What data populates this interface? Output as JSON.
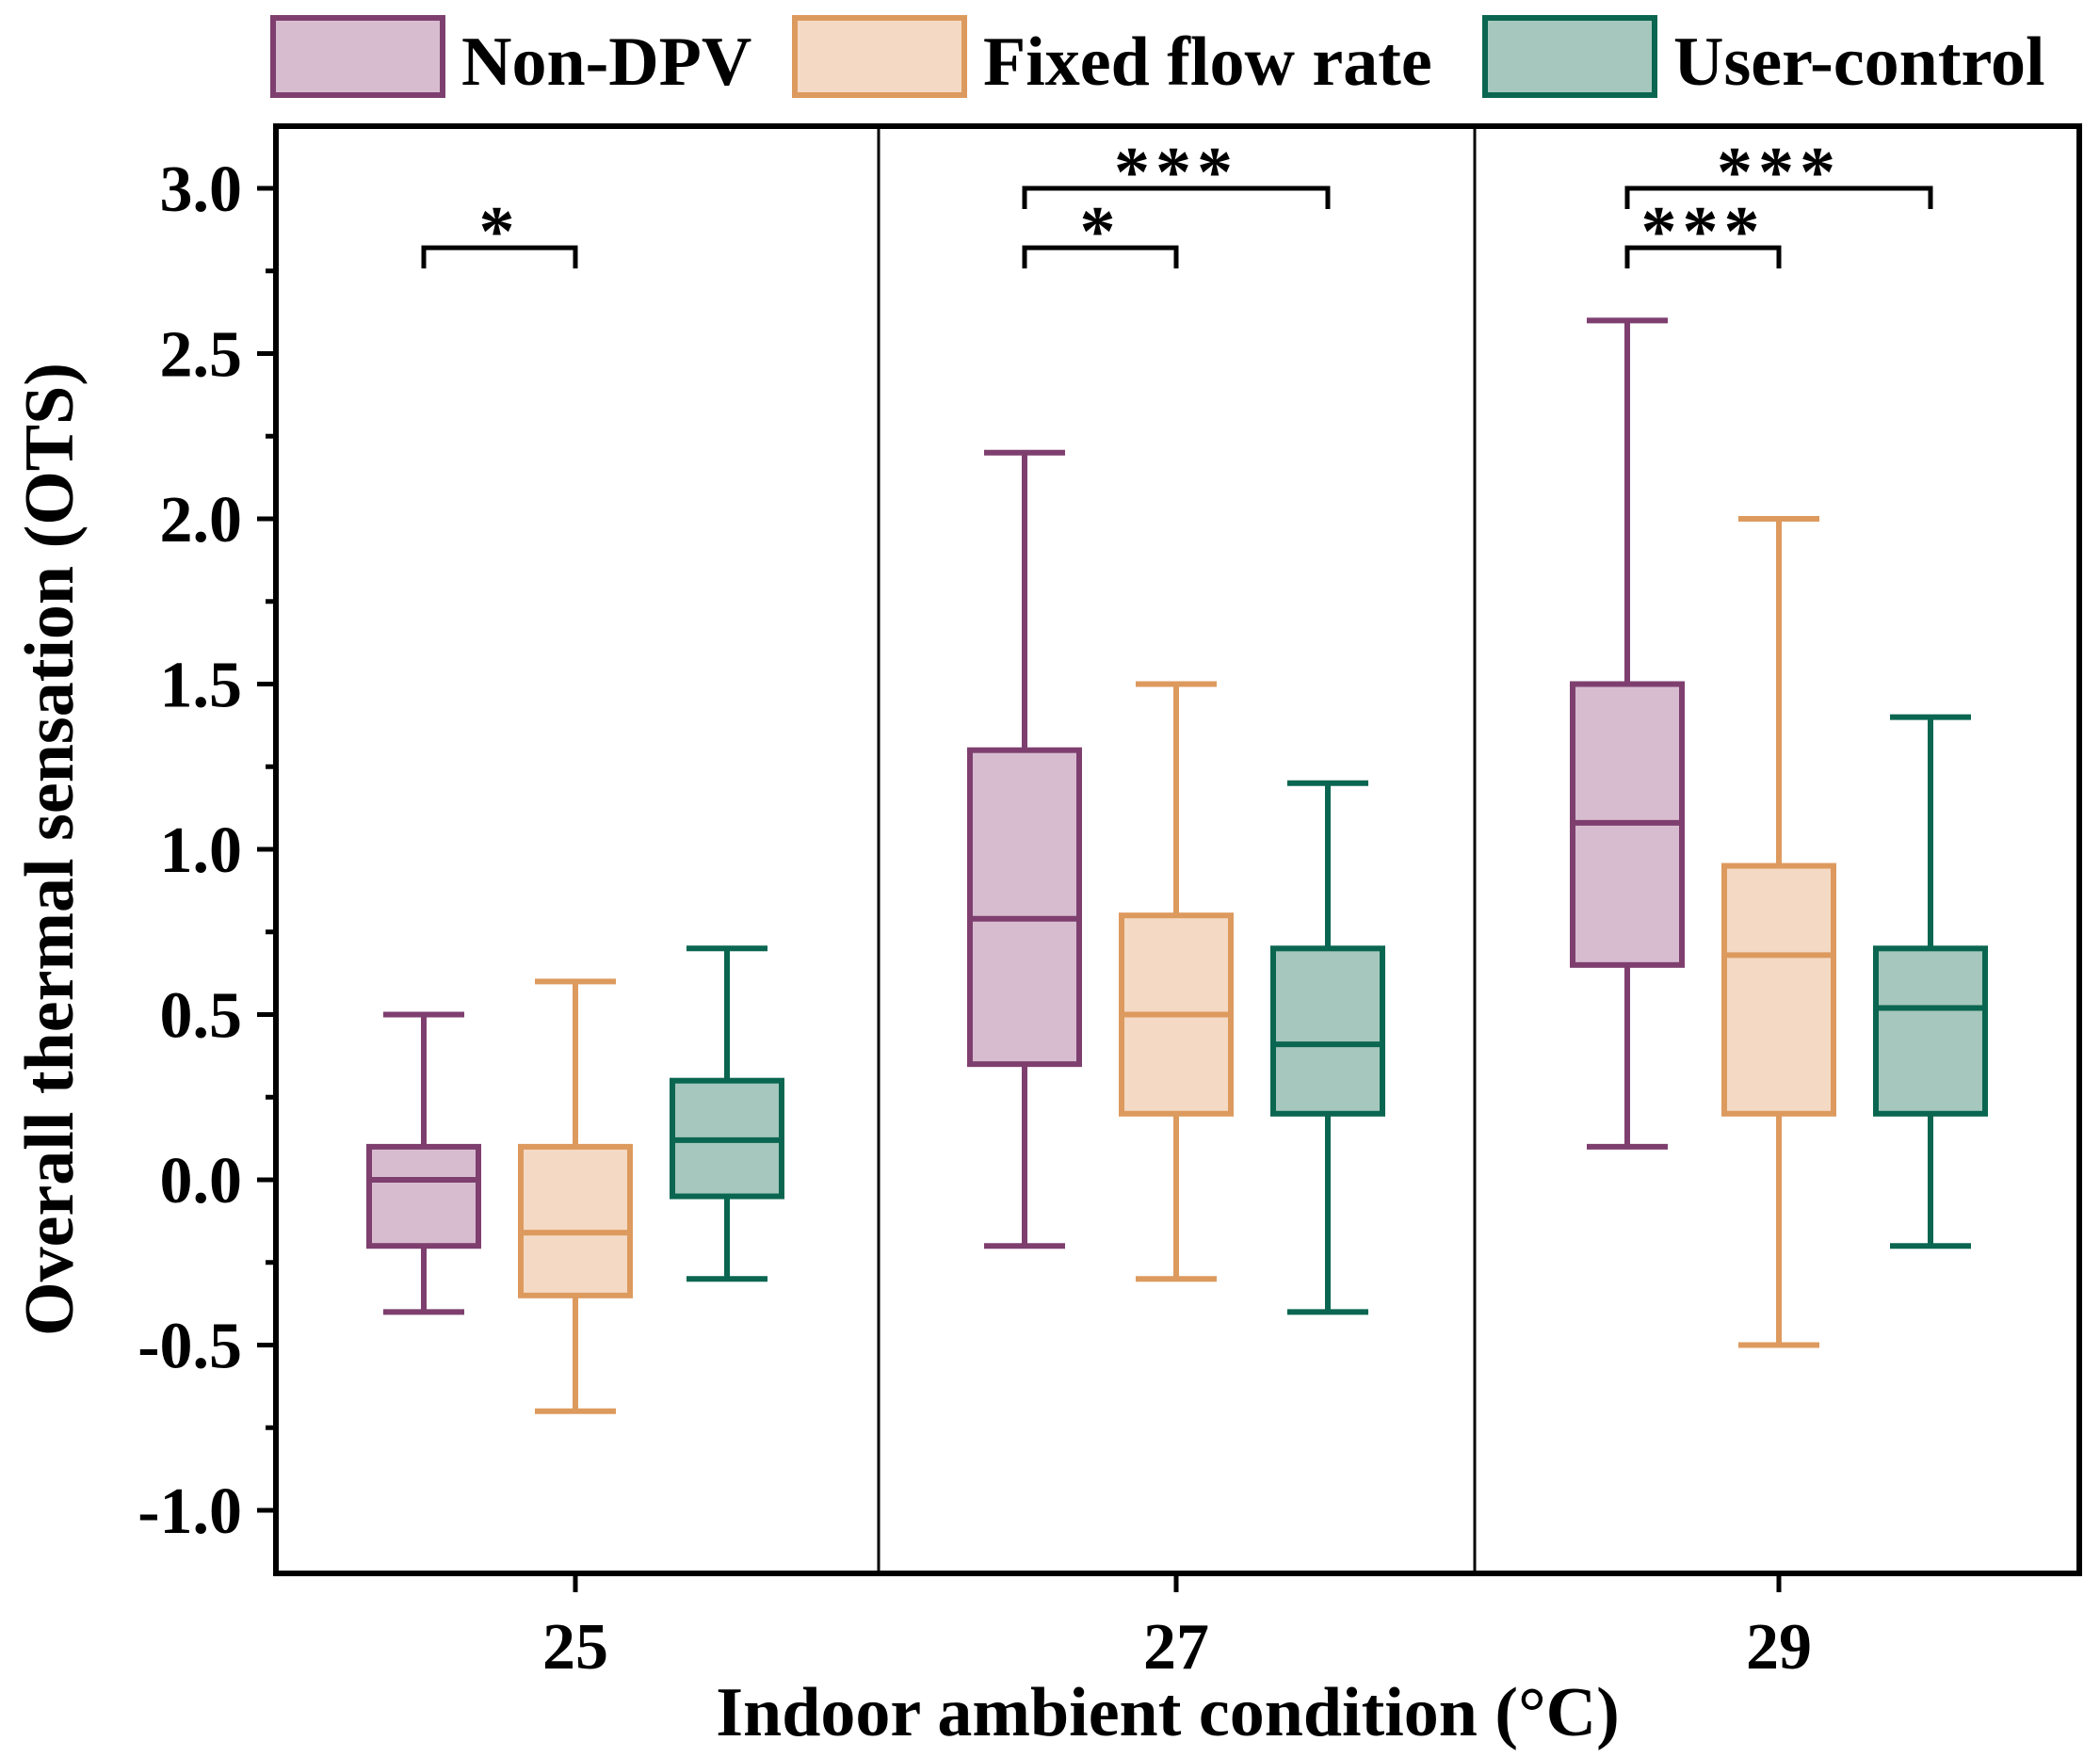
{
  "chart_data": {
    "type": "box",
    "xlabel": "Indoor ambient condition (°C)",
    "ylabel": "Overall thermal sensation (OTS)",
    "ylim": [
      -1.25,
      3.2
    ],
    "yticks": [
      -1.0,
      -0.5,
      0.0,
      0.5,
      1.0,
      1.5,
      2.0,
      2.5,
      3.0
    ],
    "ytick_labels": [
      "-1.0",
      "-0.5",
      "0.0",
      "0.5",
      "1.0",
      "1.5",
      "2.0",
      "2.5",
      "3.0"
    ],
    "categories": [
      "25",
      "27",
      "29"
    ],
    "legend": {
      "position": "top"
    },
    "series": [
      {
        "name": "Non-DPV",
        "stroke": "#7e3f6f",
        "fill": "#d7bcd0",
        "boxes": [
          {
            "min": -0.4,
            "q1": -0.2,
            "median": 0.0,
            "q3": 0.1,
            "max": 0.5
          },
          {
            "min": -0.2,
            "q1": 0.35,
            "median": 0.79,
            "q3": 1.3,
            "max": 2.2
          },
          {
            "min": 0.1,
            "q1": 0.65,
            "median": 1.08,
            "q3": 1.5,
            "max": 2.6
          }
        ]
      },
      {
        "name": "Fixed flow rate",
        "stroke": "#dd9a5e",
        "fill": "#f4d9c4",
        "boxes": [
          {
            "min": -0.7,
            "q1": -0.35,
            "median": -0.16,
            "q3": 0.1,
            "max": 0.6
          },
          {
            "min": -0.3,
            "q1": 0.2,
            "median": 0.5,
            "q3": 0.8,
            "max": 1.5
          },
          {
            "min": -0.5,
            "q1": 0.2,
            "median": 0.68,
            "q3": 0.95,
            "max": 2.0
          }
        ]
      },
      {
        "name": "User-control",
        "stroke": "#0a6650",
        "fill": "#a6c7bd",
        "boxes": [
          {
            "min": -0.3,
            "q1": -0.05,
            "median": 0.12,
            "q3": 0.3,
            "max": 0.7
          },
          {
            "min": -0.4,
            "q1": 0.2,
            "median": 0.41,
            "q3": 0.7,
            "max": 1.2
          },
          {
            "min": -0.2,
            "q1": 0.2,
            "median": 0.52,
            "q3": 0.7,
            "max": 1.4
          }
        ]
      }
    ],
    "significance": [
      {
        "category": 0,
        "from": "Non-DPV",
        "to": "Fixed flow rate",
        "y": 2.82,
        "label": "*"
      },
      {
        "category": 1,
        "from": "Non-DPV",
        "to": "Fixed flow rate",
        "y": 2.82,
        "label": "*"
      },
      {
        "category": 1,
        "from": "Non-DPV",
        "to": "User-control",
        "y": 3.0,
        "label": "***"
      },
      {
        "category": 2,
        "from": "Non-DPV",
        "to": "Fixed flow rate",
        "y": 2.82,
        "label": "***"
      },
      {
        "category": 2,
        "from": "Non-DPV",
        "to": "User-control",
        "y": 3.0,
        "label": "***"
      }
    ]
  }
}
